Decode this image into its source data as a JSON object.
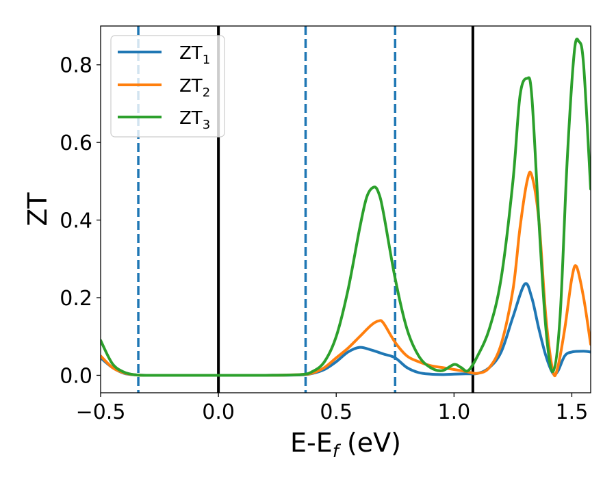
{
  "chart_data": {
    "type": "line",
    "title": "",
    "xlabel": {
      "main": "E-E",
      "sub": "f",
      "rest": " (eV)"
    },
    "ylabel": "ZT",
    "xlim": [
      -0.5,
      1.58
    ],
    "ylim": [
      -0.045,
      0.9
    ],
    "xticks": [
      -0.5,
      0.0,
      0.5,
      1.0,
      1.5
    ],
    "xtick_labels": [
      "−0.5",
      "0.0",
      "0.5",
      "1.0",
      "1.5"
    ],
    "yticks": [
      0.0,
      0.2,
      0.4,
      0.6,
      0.8
    ],
    "ytick_labels": [
      "0.0",
      "0.2",
      "0.4",
      "0.6",
      "0.8"
    ],
    "grid": false,
    "legend_position": "top-left",
    "vlines": [
      {
        "x": -0.34,
        "style": "dashed",
        "color": "#1f77b4"
      },
      {
        "x": 0.0,
        "style": "solid",
        "color": "#000000"
      },
      {
        "x": 0.37,
        "style": "dashed",
        "color": "#1f77b4"
      },
      {
        "x": 0.75,
        "style": "dashed",
        "color": "#1f77b4"
      },
      {
        "x": 1.08,
        "style": "solid",
        "color": "#000000"
      }
    ],
    "series": [
      {
        "name": "ZT",
        "name_sub": "1",
        "color": "#1f77b4",
        "x": [
          -0.5,
          -0.45,
          -0.4,
          -0.35,
          -0.3,
          -0.2,
          0.0,
          0.2,
          0.35,
          0.4,
          0.45,
          0.5,
          0.55,
          0.6,
          0.65,
          0.7,
          0.75,
          0.8,
          0.85,
          0.9,
          0.95,
          1.0,
          1.05,
          1.1,
          1.15,
          1.2,
          1.25,
          1.3,
          1.33,
          1.36,
          1.39,
          1.42,
          1.44,
          1.47,
          1.5,
          1.55,
          1.58
        ],
        "y": [
          0.045,
          0.02,
          0.005,
          0.001,
          0,
          0,
          0,
          0,
          0.001,
          0.005,
          0.015,
          0.035,
          0.06,
          0.072,
          0.065,
          0.055,
          0.045,
          0.02,
          0.007,
          0.003,
          0.002,
          0.003,
          0.004,
          0.005,
          0.02,
          0.06,
          0.15,
          0.235,
          0.2,
          0.12,
          0.05,
          0.005,
          0.01,
          0.05,
          0.06,
          0.062,
          0.06
        ]
      },
      {
        "name": "ZT",
        "name_sub": "2",
        "color": "#ff7f0e",
        "x": [
          -0.5,
          -0.45,
          -0.4,
          -0.35,
          -0.3,
          -0.2,
          0.0,
          0.2,
          0.35,
          0.4,
          0.45,
          0.5,
          0.55,
          0.6,
          0.65,
          0.68,
          0.7,
          0.75,
          0.8,
          0.85,
          0.9,
          0.95,
          1.0,
          1.05,
          1.1,
          1.15,
          1.2,
          1.25,
          1.28,
          1.31,
          1.33,
          1.36,
          1.39,
          1.42,
          1.44,
          1.47,
          1.5,
          1.52,
          1.55,
          1.58
        ],
        "y": [
          0.05,
          0.02,
          0.006,
          0.001,
          0,
          0,
          0,
          0,
          0.002,
          0.006,
          0.02,
          0.045,
          0.07,
          0.1,
          0.13,
          0.14,
          0.135,
          0.085,
          0.05,
          0.035,
          0.025,
          0.02,
          0.015,
          0.01,
          0.005,
          0.02,
          0.08,
          0.22,
          0.38,
          0.5,
          0.515,
          0.4,
          0.15,
          0.01,
          0.02,
          0.12,
          0.25,
          0.28,
          0.2,
          0.08
        ]
      },
      {
        "name": "ZT",
        "name_sub": "3",
        "color": "#2ca02c",
        "x": [
          -0.5,
          -0.45,
          -0.4,
          -0.35,
          -0.3,
          -0.2,
          0.0,
          0.2,
          0.35,
          0.4,
          0.45,
          0.5,
          0.55,
          0.6,
          0.63,
          0.66,
          0.68,
          0.7,
          0.75,
          0.8,
          0.85,
          0.9,
          0.95,
          1.0,
          1.03,
          1.06,
          1.1,
          1.15,
          1.2,
          1.25,
          1.28,
          1.31,
          1.33,
          1.36,
          1.39,
          1.42,
          1.45,
          1.48,
          1.51,
          1.53,
          1.55,
          1.58
        ],
        "y": [
          0.09,
          0.03,
          0.008,
          0.001,
          0,
          0,
          0,
          0,
          0.002,
          0.01,
          0.035,
          0.1,
          0.22,
          0.38,
          0.46,
          0.485,
          0.47,
          0.42,
          0.25,
          0.12,
          0.05,
          0.02,
          0.012,
          0.028,
          0.02,
          0.012,
          0.05,
          0.12,
          0.25,
          0.5,
          0.72,
          0.765,
          0.72,
          0.4,
          0.12,
          0.01,
          0.15,
          0.55,
          0.83,
          0.86,
          0.8,
          0.48
        ]
      }
    ]
  }
}
